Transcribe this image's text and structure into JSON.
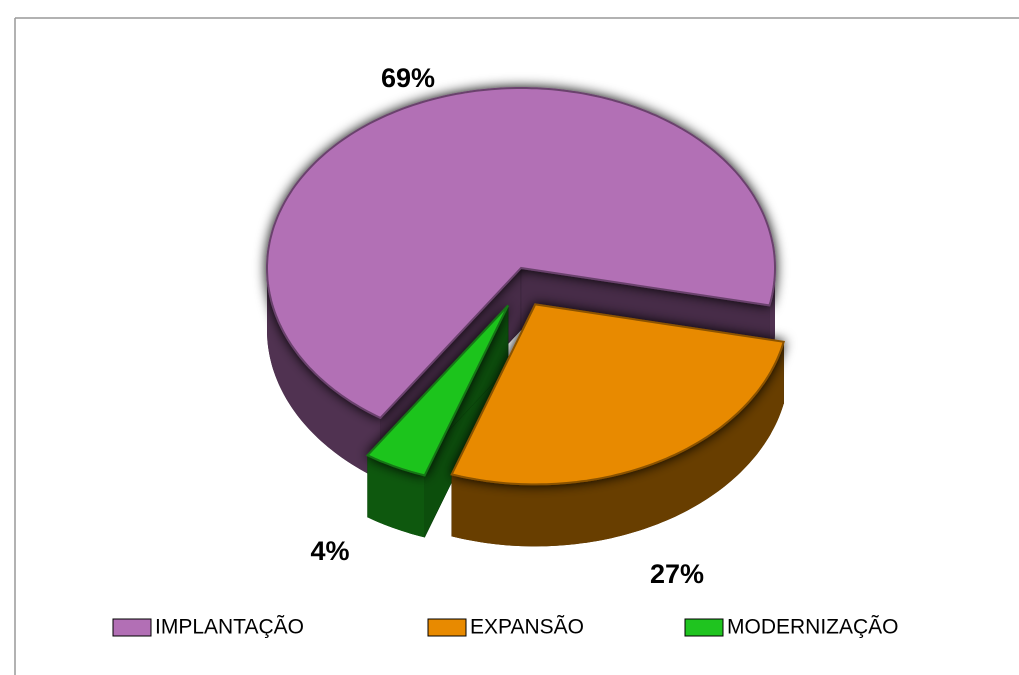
{
  "chart_data": {
    "type": "pie",
    "categories": [
      "IMPLANTAÇÃO",
      "EXPANSÃO",
      "MODERNIZAÇÃO"
    ],
    "values": [
      69,
      27,
      4
    ],
    "value_labels": [
      "69%",
      "27%",
      "4%"
    ],
    "colors": [
      "#b26fb5",
      "#e88a00",
      "#1fc41f"
    ],
    "legend": "bottom"
  }
}
